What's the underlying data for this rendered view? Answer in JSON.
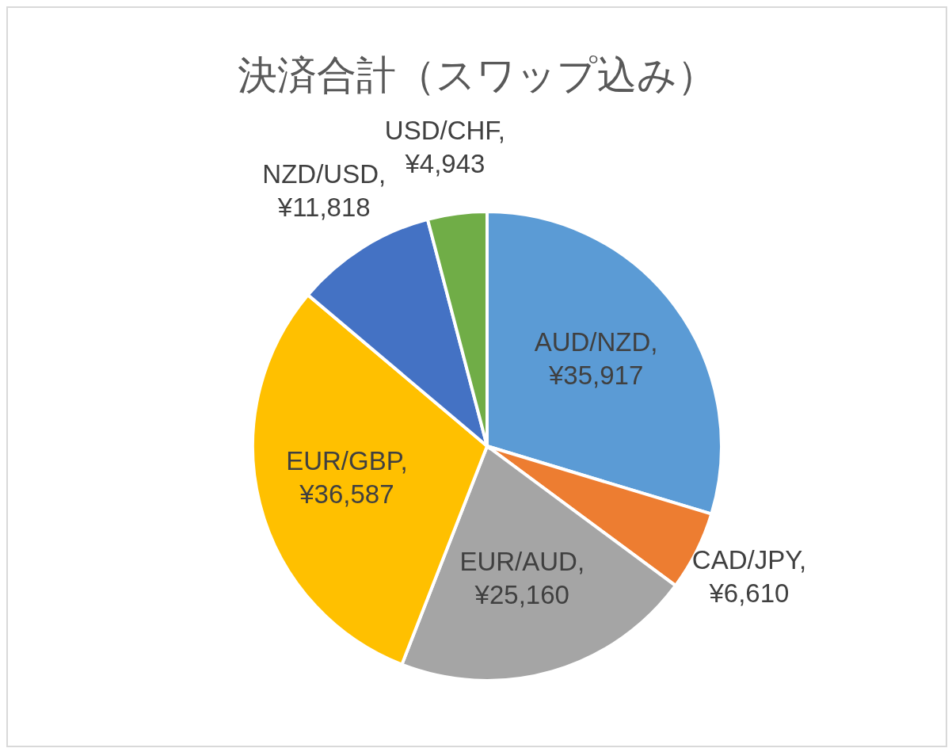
{
  "chart_data": {
    "type": "pie",
    "title": "決済合計（スワップ込み）",
    "categories": [
      "AUD/NZD",
      "CAD/JPY",
      "EUR/AUD",
      "EUR/GBP",
      "NZD/USD",
      "USD/CHF"
    ],
    "values": [
      35917,
      6610,
      25160,
      36587,
      11818,
      4943
    ],
    "colors": [
      "#5b9bd5",
      "#ed7d31",
      "#a5a5a5",
      "#ffc000",
      "#4472c4",
      "#70ad47"
    ],
    "value_labels": [
      ", ¥35,917",
      ", ¥6,610",
      ", ¥25,160",
      ", ¥36,587",
      ", ¥11,818",
      ", ¥4,943"
    ],
    "legend": false
  }
}
